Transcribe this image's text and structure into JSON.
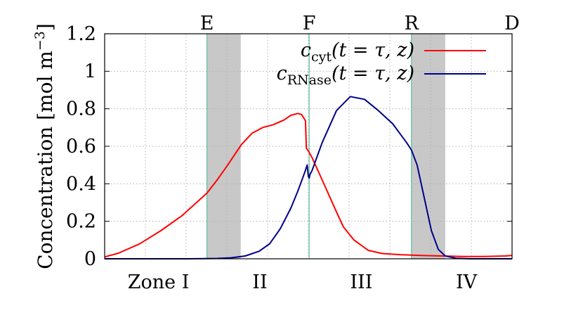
{
  "chart_data": {
    "type": "line",
    "ylabel_main": "Concentration [mol m",
    "ylabel_exp": "−3",
    "ylabel_close": "]",
    "ylim": [
      0,
      1.2
    ],
    "yticks": [
      "0",
      "0.2",
      "0.4",
      "0.6",
      "0.8",
      "1",
      "1.2"
    ],
    "ytick_values": [
      0,
      0.2,
      0.4,
      0.6,
      0.8,
      1.0,
      1.2
    ],
    "xlim": [
      0,
      1
    ],
    "grid": true,
    "legend_position": "top-right",
    "boundaries": [
      {
        "label": "E",
        "x": 0.251
      },
      {
        "label": "F",
        "x": 0.502
      },
      {
        "label": "R",
        "x": 0.753
      },
      {
        "label": "D",
        "x": 1.0
      }
    ],
    "shaded_regions": [
      {
        "x0": 0.251,
        "x1": 0.334
      },
      {
        "x0": 0.753,
        "x1": 0.836
      }
    ],
    "zones": [
      {
        "label": "Zone I",
        "x": 0.132
      },
      {
        "label": "II",
        "x": 0.381
      },
      {
        "label": "III",
        "x": 0.63
      },
      {
        "label": "IV",
        "x": 0.888
      }
    ],
    "series": [
      {
        "name_base": "c",
        "name_sub": "cyt",
        "name_args": "(t = τ, z)",
        "color": "#ff0000",
        "x": [
          0,
          0.034,
          0.086,
          0.138,
          0.19,
          0.251,
          0.276,
          0.302,
          0.336,
          0.362,
          0.388,
          0.414,
          0.44,
          0.457,
          0.474,
          0.483,
          0.489,
          0.493,
          0.495,
          0.5,
          0.509,
          0.534,
          0.569,
          0.586,
          0.612,
          0.647,
          0.681,
          0.724,
          0.776,
          0.828,
          0.879,
          0.931,
          0.983,
          1.0
        ],
        "values": [
          0.01,
          0.03,
          0.08,
          0.15,
          0.23,
          0.35,
          0.42,
          0.5,
          0.61,
          0.67,
          0.7,
          0.715,
          0.74,
          0.765,
          0.775,
          0.77,
          0.75,
          0.735,
          0.59,
          0.575,
          0.54,
          0.42,
          0.25,
          0.17,
          0.1,
          0.045,
          0.028,
          0.022,
          0.018,
          0.015,
          0.012,
          0.012,
          0.015,
          0.018
        ]
      },
      {
        "name_base": "c",
        "name_sub": "RNase",
        "name_args": "(t = τ, z)",
        "color": "#00008b",
        "x": [
          0,
          0.103,
          0.207,
          0.276,
          0.31,
          0.345,
          0.379,
          0.405,
          0.431,
          0.457,
          0.474,
          0.491,
          0.497,
          0.5,
          0.502,
          0.504,
          0.509,
          0.534,
          0.569,
          0.603,
          0.638,
          0.672,
          0.707,
          0.741,
          0.753,
          0.767,
          0.784,
          0.802,
          0.819,
          0.836,
          0.862,
          0.897,
          0.931,
          0.966,
          1.0
        ],
        "values": [
          0.0,
          0.0,
          0.0,
          0.002,
          0.005,
          0.015,
          0.04,
          0.08,
          0.16,
          0.27,
          0.36,
          0.46,
          0.5,
          0.44,
          0.43,
          0.45,
          0.47,
          0.62,
          0.79,
          0.865,
          0.85,
          0.79,
          0.72,
          0.62,
          0.58,
          0.5,
          0.33,
          0.15,
          0.05,
          0.015,
          0.003,
          0.0,
          0.0,
          0.0,
          0.0
        ]
      }
    ]
  }
}
